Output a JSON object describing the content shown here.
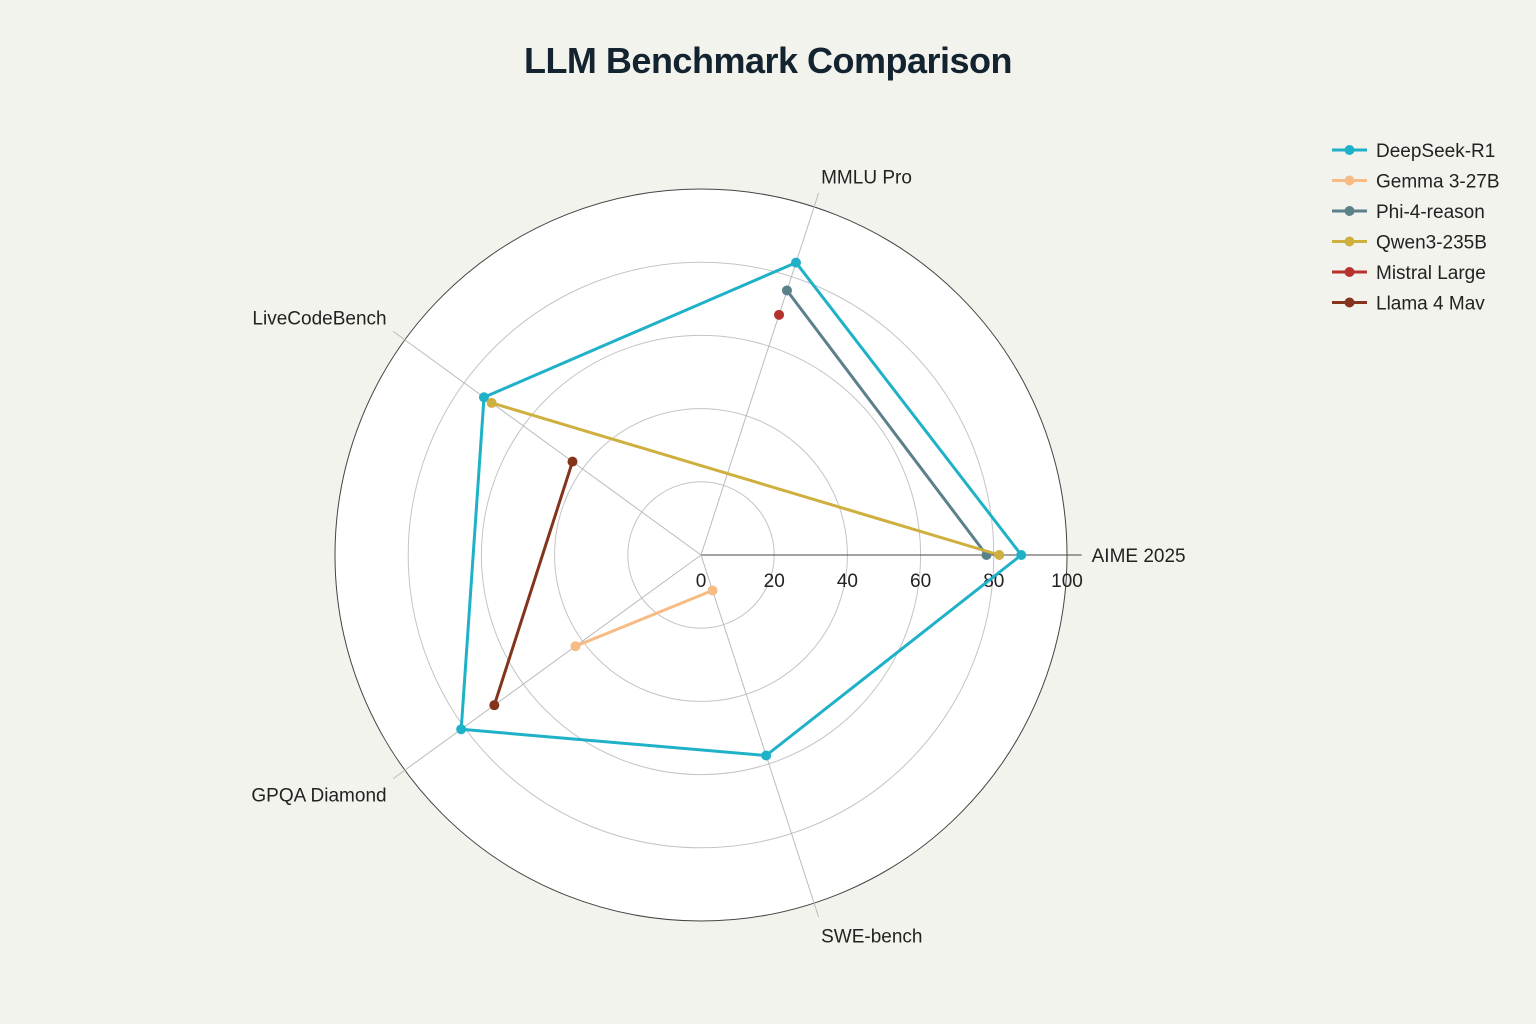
{
  "chart_data": {
    "type": "radar",
    "title": "LLM Benchmark Comparison",
    "axes": [
      "AIME 2025",
      "MMLU Pro",
      "LiveCodeBench",
      "GPQA Diamond",
      "SWE-bench"
    ],
    "radial_range": [
      0,
      100
    ],
    "radial_ticks": [
      0,
      20,
      40,
      60,
      80,
      100
    ],
    "grid": true,
    "legend_position": "top-right",
    "series": [
      {
        "name": "DeepSeek-R1",
        "color": "#1fb1c8",
        "values": [
          87.5,
          84,
          73.3,
          81,
          57.6
        ]
      },
      {
        "name": "Gemma 3-27B",
        "color": "#f7bc85",
        "values": [
          null,
          null,
          null,
          42.4,
          10.2
        ]
      },
      {
        "name": "Phi-4-reason",
        "color": "#5a8189",
        "values": [
          78,
          76,
          null,
          null,
          null
        ]
      },
      {
        "name": "Qwen3-235B",
        "color": "#cfaf3e",
        "values": [
          81.5,
          null,
          70.7,
          null,
          null
        ]
      },
      {
        "name": "Mistral Large",
        "color": "#b5322e",
        "values": [
          null,
          69,
          null,
          null,
          null
        ]
      },
      {
        "name": "Llama 4 Mav",
        "color": "#84341c",
        "values": [
          null,
          null,
          43.4,
          69.8,
          null
        ]
      }
    ]
  }
}
